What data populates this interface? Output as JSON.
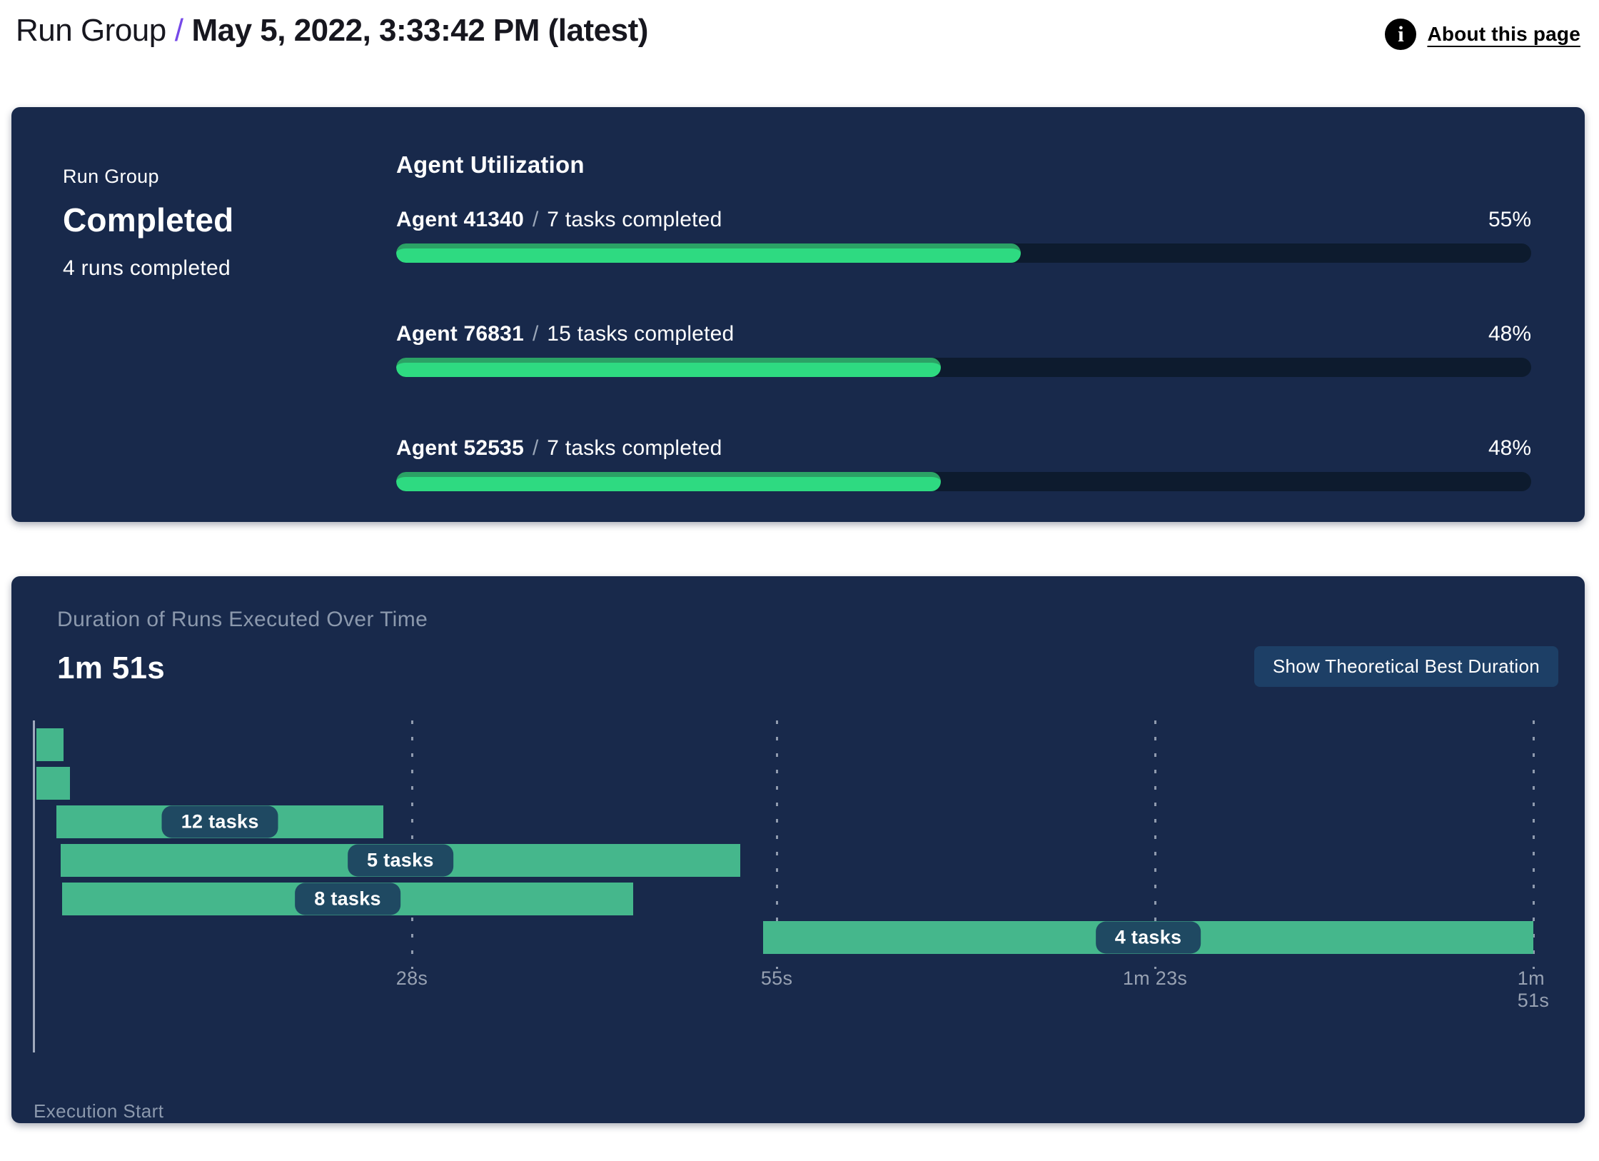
{
  "header": {
    "breadcrumb_root": "Run Group",
    "separator": "/",
    "title": "May 5, 2022, 3:33:42 PM (latest)",
    "about_label": "About this page",
    "info_icon_glyph": "i"
  },
  "run_group": {
    "label": "Run Group",
    "status": "Completed",
    "runs_summary": "4 runs completed"
  },
  "utilization": {
    "heading": "Agent Utilization",
    "separator": "/",
    "agents": [
      {
        "name": "Agent 41340",
        "tasks": "7 tasks completed",
        "percent": 55,
        "percent_label": "55%"
      },
      {
        "name": "Agent 76831",
        "tasks": "15 tasks completed",
        "percent": 48,
        "percent_label": "48%"
      },
      {
        "name": "Agent 52535",
        "tasks": "7 tasks completed",
        "percent": 48,
        "percent_label": "48%"
      }
    ]
  },
  "duration_chart": {
    "title": "Duration of Runs Executed Over Time",
    "total_duration_label": "1m 51s",
    "button_label": "Show Theoretical Best Duration",
    "xlabel": "Execution Start"
  },
  "colors": {
    "panel_navy": "#18294b",
    "progress_track": "#0d1b2e",
    "progress_green": "#2eda81",
    "progress_green_edge": "#2ba265",
    "gantt_green": "#45b78c",
    "pill_navy": "#1f4962",
    "button_navy": "#1d3f66",
    "accent_purple": "#7649e8",
    "muted_text": "#8c99ad"
  },
  "chart_data": [
    {
      "type": "bar",
      "title": "Agent Utilization",
      "orientation": "horizontal",
      "categories": [
        "Agent 41340",
        "Agent 76831",
        "Agent 52535"
      ],
      "values": [
        55,
        48,
        48
      ],
      "unit": "%",
      "xlim": [
        0,
        100
      ],
      "annotations": [
        "7 tasks completed",
        "15 tasks completed",
        "7 tasks completed"
      ]
    },
    {
      "type": "gantt",
      "title": "Duration of Runs Executed Over Time",
      "total_duration_label": "1m 51s",
      "xlabel": "Execution Start",
      "axis_max_seconds": 111,
      "grid": true,
      "x_ticks": [
        {
          "label": "28s",
          "seconds": 28
        },
        {
          "label": "55s",
          "seconds": 55
        },
        {
          "label": "1m 23s",
          "seconds": 83
        },
        {
          "label": "1m 51s",
          "seconds": 111
        }
      ],
      "runs": [
        {
          "label": "",
          "start_s": 0.2,
          "end_s": 2.2
        },
        {
          "label": "",
          "start_s": 0.2,
          "end_s": 2.7
        },
        {
          "label": "12 tasks",
          "start_s": 1.7,
          "end_s": 25.9
        },
        {
          "label": "5 tasks",
          "start_s": 2.0,
          "end_s": 52.3
        },
        {
          "label": "8 tasks",
          "start_s": 2.1,
          "end_s": 44.4
        },
        {
          "label": "4 tasks",
          "start_s": 54.0,
          "end_s": 111.0
        }
      ]
    }
  ]
}
